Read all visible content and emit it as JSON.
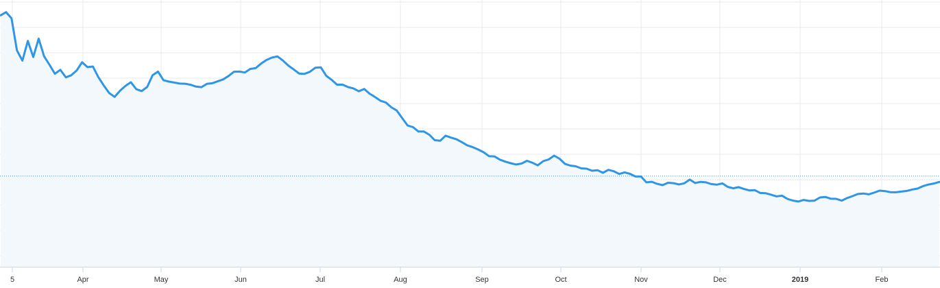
{
  "chart_data": {
    "type": "area",
    "title": "",
    "xlabel": "",
    "ylabel": "",
    "grid": true,
    "legend": "none",
    "x_tick_labels": [
      "5",
      "Apr",
      "May",
      "Jun",
      "Jul",
      "Aug",
      "Sep",
      "Oct",
      "Nov",
      "Dec",
      "2019",
      "Feb"
    ],
    "x_tick_bold": [
      "2019"
    ],
    "reference_line": {
      "style": "dotted",
      "value": 127
    },
    "ylim": [
      0,
      360
    ],
    "series": [
      {
        "color": "#2f95e6",
        "fill": "#f3f8fd",
        "values": [
          352,
          360,
          348,
          305,
          290,
          318,
          296,
          320,
          292,
          281,
          270,
          275,
          262,
          268,
          274,
          288,
          283,
          282,
          268,
          255,
          246,
          240,
          249,
          251,
          255,
          246,
          244,
          248,
          265,
          271,
          265,
          262,
          259,
          258,
          257,
          257,
          256,
          255,
          254,
          256,
          258,
          262,
          265,
          270,
          272,
          275,
          278,
          280,
          285,
          290,
          294,
          295,
          288,
          280,
          274,
          270,
          268,
          270,
          276,
          276,
          268,
          262,
          258,
          255,
          252,
          250,
          248,
          246,
          240,
          235,
          230,
          228,
          220,
          215,
          205,
          200,
          196,
          192,
          190,
          185,
          180,
          178,
          180,
          178,
          175,
          172,
          168,
          165,
          162,
          160,
          158,
          155,
          152,
          150,
          148,
          146,
          148,
          145,
          142,
          140,
          145,
          150,
          152,
          148,
          146,
          145,
          142,
          140,
          140,
          138,
          136,
          134,
          132,
          130,
          128,
          130,
          128,
          126,
          124,
          122,
          120,
          119,
          118,
          118,
          117,
          118,
          118,
          119,
          117,
          116,
          116,
          115,
          114,
          113,
          114,
          113,
          112,
          112,
          110,
          108,
          105,
          102,
          100,
          98,
          96,
          94,
          92,
          91,
          92,
          94,
          96,
          97,
          98,
          98,
          97,
          96,
          96,
          97,
          99,
          100,
          101,
          102,
          103,
          104,
          105,
          106,
          108,
          109,
          110,
          112,
          113,
          114,
          116,
          118
        ]
      }
    ],
    "note_values": "approximate price-like values read from the curve shape; y axis not labeled"
  }
}
